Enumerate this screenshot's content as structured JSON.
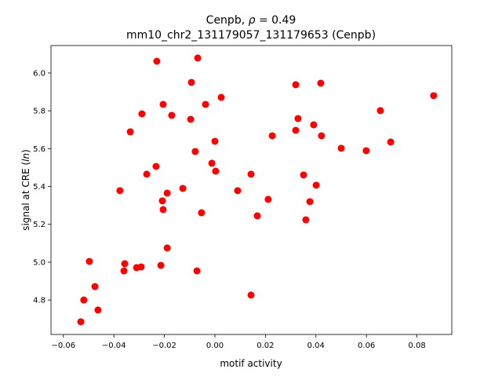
{
  "chart_data": {
    "type": "scatter",
    "title_line1_prefix": "Cenpb, ",
    "title_rho_symbol": "ρ",
    "title_rho_value": " = 0.49",
    "title_line2": "mm10_chr2_131179057_131179653 (Cenpb)",
    "xlabel": "motif activity",
    "ylabel_prefix": "signal at CRE (",
    "ylabel_italic": "ln",
    "ylabel_suffix": ")",
    "xlim": [
      -0.0649,
      0.0938
    ],
    "ylim": [
      4.618,
      6.145
    ],
    "xticks": [
      -0.06,
      -0.04,
      -0.02,
      0.0,
      0.02,
      0.04,
      0.06,
      0.08
    ],
    "xtick_labels": [
      "−0.06",
      "−0.04",
      "−0.02",
      "0.00",
      "0.02",
      "0.04",
      "0.06",
      "0.08"
    ],
    "yticks": [
      4.8,
      5.0,
      5.2,
      5.4,
      5.6,
      5.8,
      6.0
    ],
    "ytick_labels": [
      "4.8",
      "5.0",
      "5.2",
      "5.4",
      "5.6",
      "5.8",
      "6.0"
    ],
    "grid": false,
    "marker_color": "#ff0000",
    "points": [
      [
        -0.0531,
        4.685
      ],
      [
        -0.0519,
        4.8
      ],
      [
        -0.0497,
        5.004
      ],
      [
        -0.0475,
        4.871
      ],
      [
        -0.0463,
        4.747
      ],
      [
        -0.0376,
        5.378
      ],
      [
        -0.0357,
        4.992
      ],
      [
        -0.036,
        4.954
      ],
      [
        -0.0335,
        5.689
      ],
      [
        -0.031,
        4.971
      ],
      [
        -0.0292,
        4.975
      ],
      [
        -0.0289,
        5.784
      ],
      [
        -0.027,
        5.465
      ],
      [
        -0.0233,
        5.506
      ],
      [
        -0.023,
        6.062
      ],
      [
        -0.0214,
        4.983
      ],
      [
        -0.0208,
        5.324
      ],
      [
        -0.0205,
        5.278
      ],
      [
        -0.0205,
        5.834
      ],
      [
        -0.0189,
        5.365
      ],
      [
        -0.0189,
        5.075
      ],
      [
        -0.0171,
        5.776
      ],
      [
        -0.0127,
        5.39
      ],
      [
        -0.0096,
        5.755
      ],
      [
        -0.0093,
        5.95
      ],
      [
        -0.0078,
        5.585
      ],
      [
        -0.0071,
        4.954
      ],
      [
        -0.0068,
        6.079
      ],
      [
        -0.0053,
        5.261
      ],
      [
        -0.0037,
        5.834
      ],
      [
        -0.0012,
        5.523
      ],
      [
        0.0,
        5.639
      ],
      [
        0.0003,
        5.481
      ],
      [
        0.0025,
        5.871
      ],
      [
        0.009,
        5.378
      ],
      [
        0.0143,
        4.826
      ],
      [
        0.0143,
        5.465
      ],
      [
        0.0168,
        5.245
      ],
      [
        0.0211,
        5.332
      ],
      [
        0.0227,
        5.668
      ],
      [
        0.032,
        5.938
      ],
      [
        0.032,
        5.697
      ],
      [
        0.0329,
        5.759
      ],
      [
        0.0351,
        5.461
      ],
      [
        0.036,
        5.224
      ],
      [
        0.0376,
        5.32
      ],
      [
        0.0391,
        5.726
      ],
      [
        0.0401,
        5.407
      ],
      [
        0.0419,
        5.946
      ],
      [
        0.0422,
        5.668
      ],
      [
        0.05,
        5.602
      ],
      [
        0.0599,
        5.589
      ],
      [
        0.0655,
        5.801
      ],
      [
        0.0696,
        5.635
      ],
      [
        0.0866,
        5.88
      ]
    ]
  }
}
